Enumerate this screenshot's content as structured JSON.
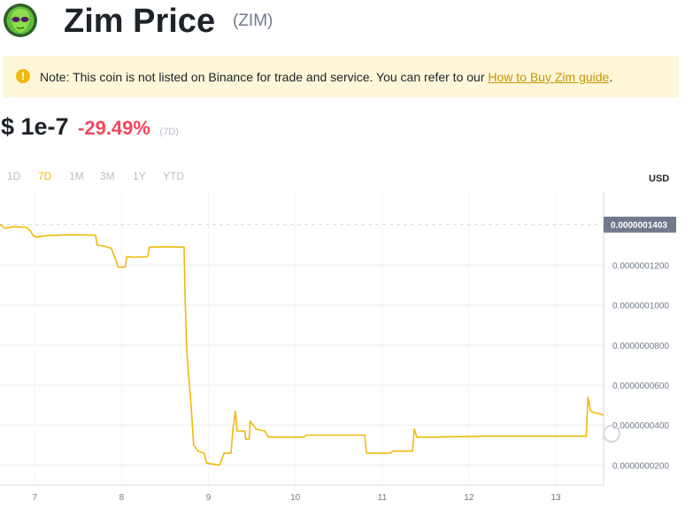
{
  "header": {
    "title": "Zim Price",
    "symbol": "(ZIM)",
    "logo_icon": "zim-alien-logo"
  },
  "note": {
    "icon": "exclamation-icon",
    "text": "Note: This coin is not listed on Binance for trade and service. You can refer to our ",
    "link_text": "How to Buy Zim guide",
    "suffix": "."
  },
  "price": {
    "value": "$ 1e-7",
    "change": "-29.49%",
    "period": "(7D)"
  },
  "colors": {
    "accent": "#f0b90b",
    "negative": "#f6465d",
    "line": "#f0b90b"
  },
  "tabs": {
    "items": [
      "1D",
      "7D",
      "1M",
      "3M",
      "1Y",
      "YTD"
    ],
    "active": "7D"
  },
  "chart": {
    "currency_label": "USD",
    "current_value_label": "0.0000001403"
  },
  "chart_data": {
    "type": "line",
    "title": "",
    "xlabel": "",
    "ylabel": "USD",
    "xlim": [
      6.6,
      13.55
    ],
    "ylim": [
      1e-08,
      1.57e-07
    ],
    "grid": true,
    "x_ticks": [
      7,
      8,
      9,
      10,
      11,
      12,
      13
    ],
    "x_tick_labels": [
      "7",
      "8",
      "9",
      "10",
      "11",
      "12",
      "13"
    ],
    "y_ticks": [
      2e-08,
      4e-08,
      6e-08,
      8e-08,
      1e-07,
      1.2e-07
    ],
    "y_tick_labels": [
      "0.0000000200",
      "0.0000000400",
      "0.0000000600",
      "0.0000000800",
      "0.0000001000",
      "0.0000001200"
    ],
    "current_value": 1.403e-07,
    "series": [
      {
        "values": [
          [
            6.6,
            1.405e-07
          ],
          [
            6.65,
            1.385e-07
          ],
          [
            6.75,
            1.392e-07
          ],
          [
            6.9,
            1.39e-07
          ],
          [
            6.95,
            1.372e-07
          ],
          [
            6.98,
            1.348e-07
          ],
          [
            7.02,
            1.34e-07
          ],
          [
            7.15,
            1.348e-07
          ],
          [
            7.4,
            1.352e-07
          ],
          [
            7.7,
            1.35e-07
          ],
          [
            7.72,
            1.3e-07
          ],
          [
            7.8,
            1.295e-07
          ],
          [
            7.88,
            1.285e-07
          ],
          [
            7.92,
            1.243e-07
          ],
          [
            7.96,
            1.19e-07
          ],
          [
            8.04,
            1.19e-07
          ],
          [
            8.06,
            1.243e-07
          ],
          [
            8.15,
            1.24e-07
          ],
          [
            8.3,
            1.243e-07
          ],
          [
            8.32,
            1.29e-07
          ],
          [
            8.5,
            1.292e-07
          ],
          [
            8.72,
            1.29e-07
          ],
          [
            8.73,
            1.06e-07
          ],
          [
            8.75,
            7.8e-08
          ],
          [
            8.77,
            6.6e-08
          ],
          [
            8.8,
            5e-08
          ],
          [
            8.83,
            3e-08
          ],
          [
            8.88,
            2.7e-08
          ],
          [
            8.95,
            2.6e-08
          ],
          [
            8.98,
            2.1e-08
          ],
          [
            9.13,
            2e-08
          ],
          [
            9.18,
            2.6e-08
          ],
          [
            9.26,
            2.6e-08
          ],
          [
            9.28,
            3.7e-08
          ],
          [
            9.31,
            4.7e-08
          ],
          [
            9.33,
            3.7e-08
          ],
          [
            9.42,
            3.7e-08
          ],
          [
            9.43,
            3.3e-08
          ],
          [
            9.47,
            3.3e-08
          ],
          [
            9.48,
            4.2e-08
          ],
          [
            9.55,
            3.8e-08
          ],
          [
            9.65,
            3.7e-08
          ],
          [
            9.69,
            3.4e-08
          ],
          [
            10.1,
            3.4e-08
          ],
          [
            10.13,
            3.5e-08
          ],
          [
            10.8,
            3.5e-08
          ],
          [
            10.82,
            2.6e-08
          ],
          [
            11.1,
            2.6e-08
          ],
          [
            11.12,
            2.7e-08
          ],
          [
            11.35,
            2.7e-08
          ],
          [
            11.37,
            3.8e-08
          ],
          [
            11.4,
            3.4e-08
          ],
          [
            11.6,
            3.4e-08
          ],
          [
            12.2,
            3.45e-08
          ],
          [
            13.35,
            3.45e-08
          ],
          [
            13.37,
            5.4e-08
          ],
          [
            13.4,
            4.7e-08
          ],
          [
            13.45,
            4.6e-08
          ],
          [
            13.48,
            4.6e-08
          ],
          [
            13.55,
            4.5e-08
          ]
        ]
      }
    ]
  }
}
